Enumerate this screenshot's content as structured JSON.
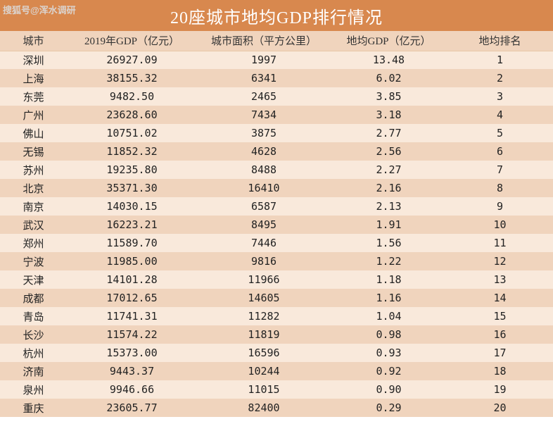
{
  "watermark": "搜狐号@浑水调研",
  "title": "20座城市地均GDP排行情况",
  "columns": {
    "city": "城市",
    "gdp": "2019年GDP（亿元）",
    "area": "城市面积（平方公里）",
    "density": "地均GDP（亿元）",
    "rank": "地均排名"
  },
  "rows": [
    {
      "city": "深圳",
      "gdp": "26927.09",
      "area": "1997",
      "density": "13.48",
      "rank": "1"
    },
    {
      "city": "上海",
      "gdp": "38155.32",
      "area": "6341",
      "density": "6.02",
      "rank": "2"
    },
    {
      "city": "东莞",
      "gdp": "9482.50",
      "area": "2465",
      "density": "3.85",
      "rank": "3"
    },
    {
      "city": "广州",
      "gdp": "23628.60",
      "area": "7434",
      "density": "3.18",
      "rank": "4"
    },
    {
      "city": "佛山",
      "gdp": "10751.02",
      "area": "3875",
      "density": "2.77",
      "rank": "5"
    },
    {
      "city": "无锡",
      "gdp": "11852.32",
      "area": "4628",
      "density": "2.56",
      "rank": "6"
    },
    {
      "city": "苏州",
      "gdp": "19235.80",
      "area": "8488",
      "density": "2.27",
      "rank": "7"
    },
    {
      "city": "北京",
      "gdp": "35371.30",
      "area": "16410",
      "density": "2.16",
      "rank": "8"
    },
    {
      "city": "南京",
      "gdp": "14030.15",
      "area": "6587",
      "density": "2.13",
      "rank": "9"
    },
    {
      "city": "武汉",
      "gdp": "16223.21",
      "area": "8495",
      "density": "1.91",
      "rank": "10"
    },
    {
      "city": "郑州",
      "gdp": "11589.70",
      "area": "7446",
      "density": "1.56",
      "rank": "11"
    },
    {
      "city": "宁波",
      "gdp": "11985.00",
      "area": "9816",
      "density": "1.22",
      "rank": "12"
    },
    {
      "city": "天津",
      "gdp": "14101.28",
      "area": "11966",
      "density": "1.18",
      "rank": "13"
    },
    {
      "city": "成都",
      "gdp": "17012.65",
      "area": "14605",
      "density": "1.16",
      "rank": "14"
    },
    {
      "city": "青岛",
      "gdp": "11741.31",
      "area": "11282",
      "density": "1.04",
      "rank": "15"
    },
    {
      "city": "长沙",
      "gdp": "11574.22",
      "area": "11819",
      "density": "0.98",
      "rank": "16"
    },
    {
      "city": "杭州",
      "gdp": "15373.00",
      "area": "16596",
      "density": "0.93",
      "rank": "17"
    },
    {
      "city": "济南",
      "gdp": "9443.37",
      "area": "10244",
      "density": "0.92",
      "rank": "18"
    },
    {
      "city": "泉州",
      "gdp": "9946.66",
      "area": "11015",
      "density": "0.90",
      "rank": "19"
    },
    {
      "city": "重庆",
      "gdp": "23605.77",
      "area": "82400",
      "density": "0.29",
      "rank": "20"
    }
  ],
  "colors": {
    "title_bg": "#d8884e",
    "title_fg": "#ffffff",
    "header_bg": "#f0d4bd",
    "row_even_bg": "#f9e9db",
    "row_odd_bg": "#f0d4bd",
    "text": "#222222"
  }
}
